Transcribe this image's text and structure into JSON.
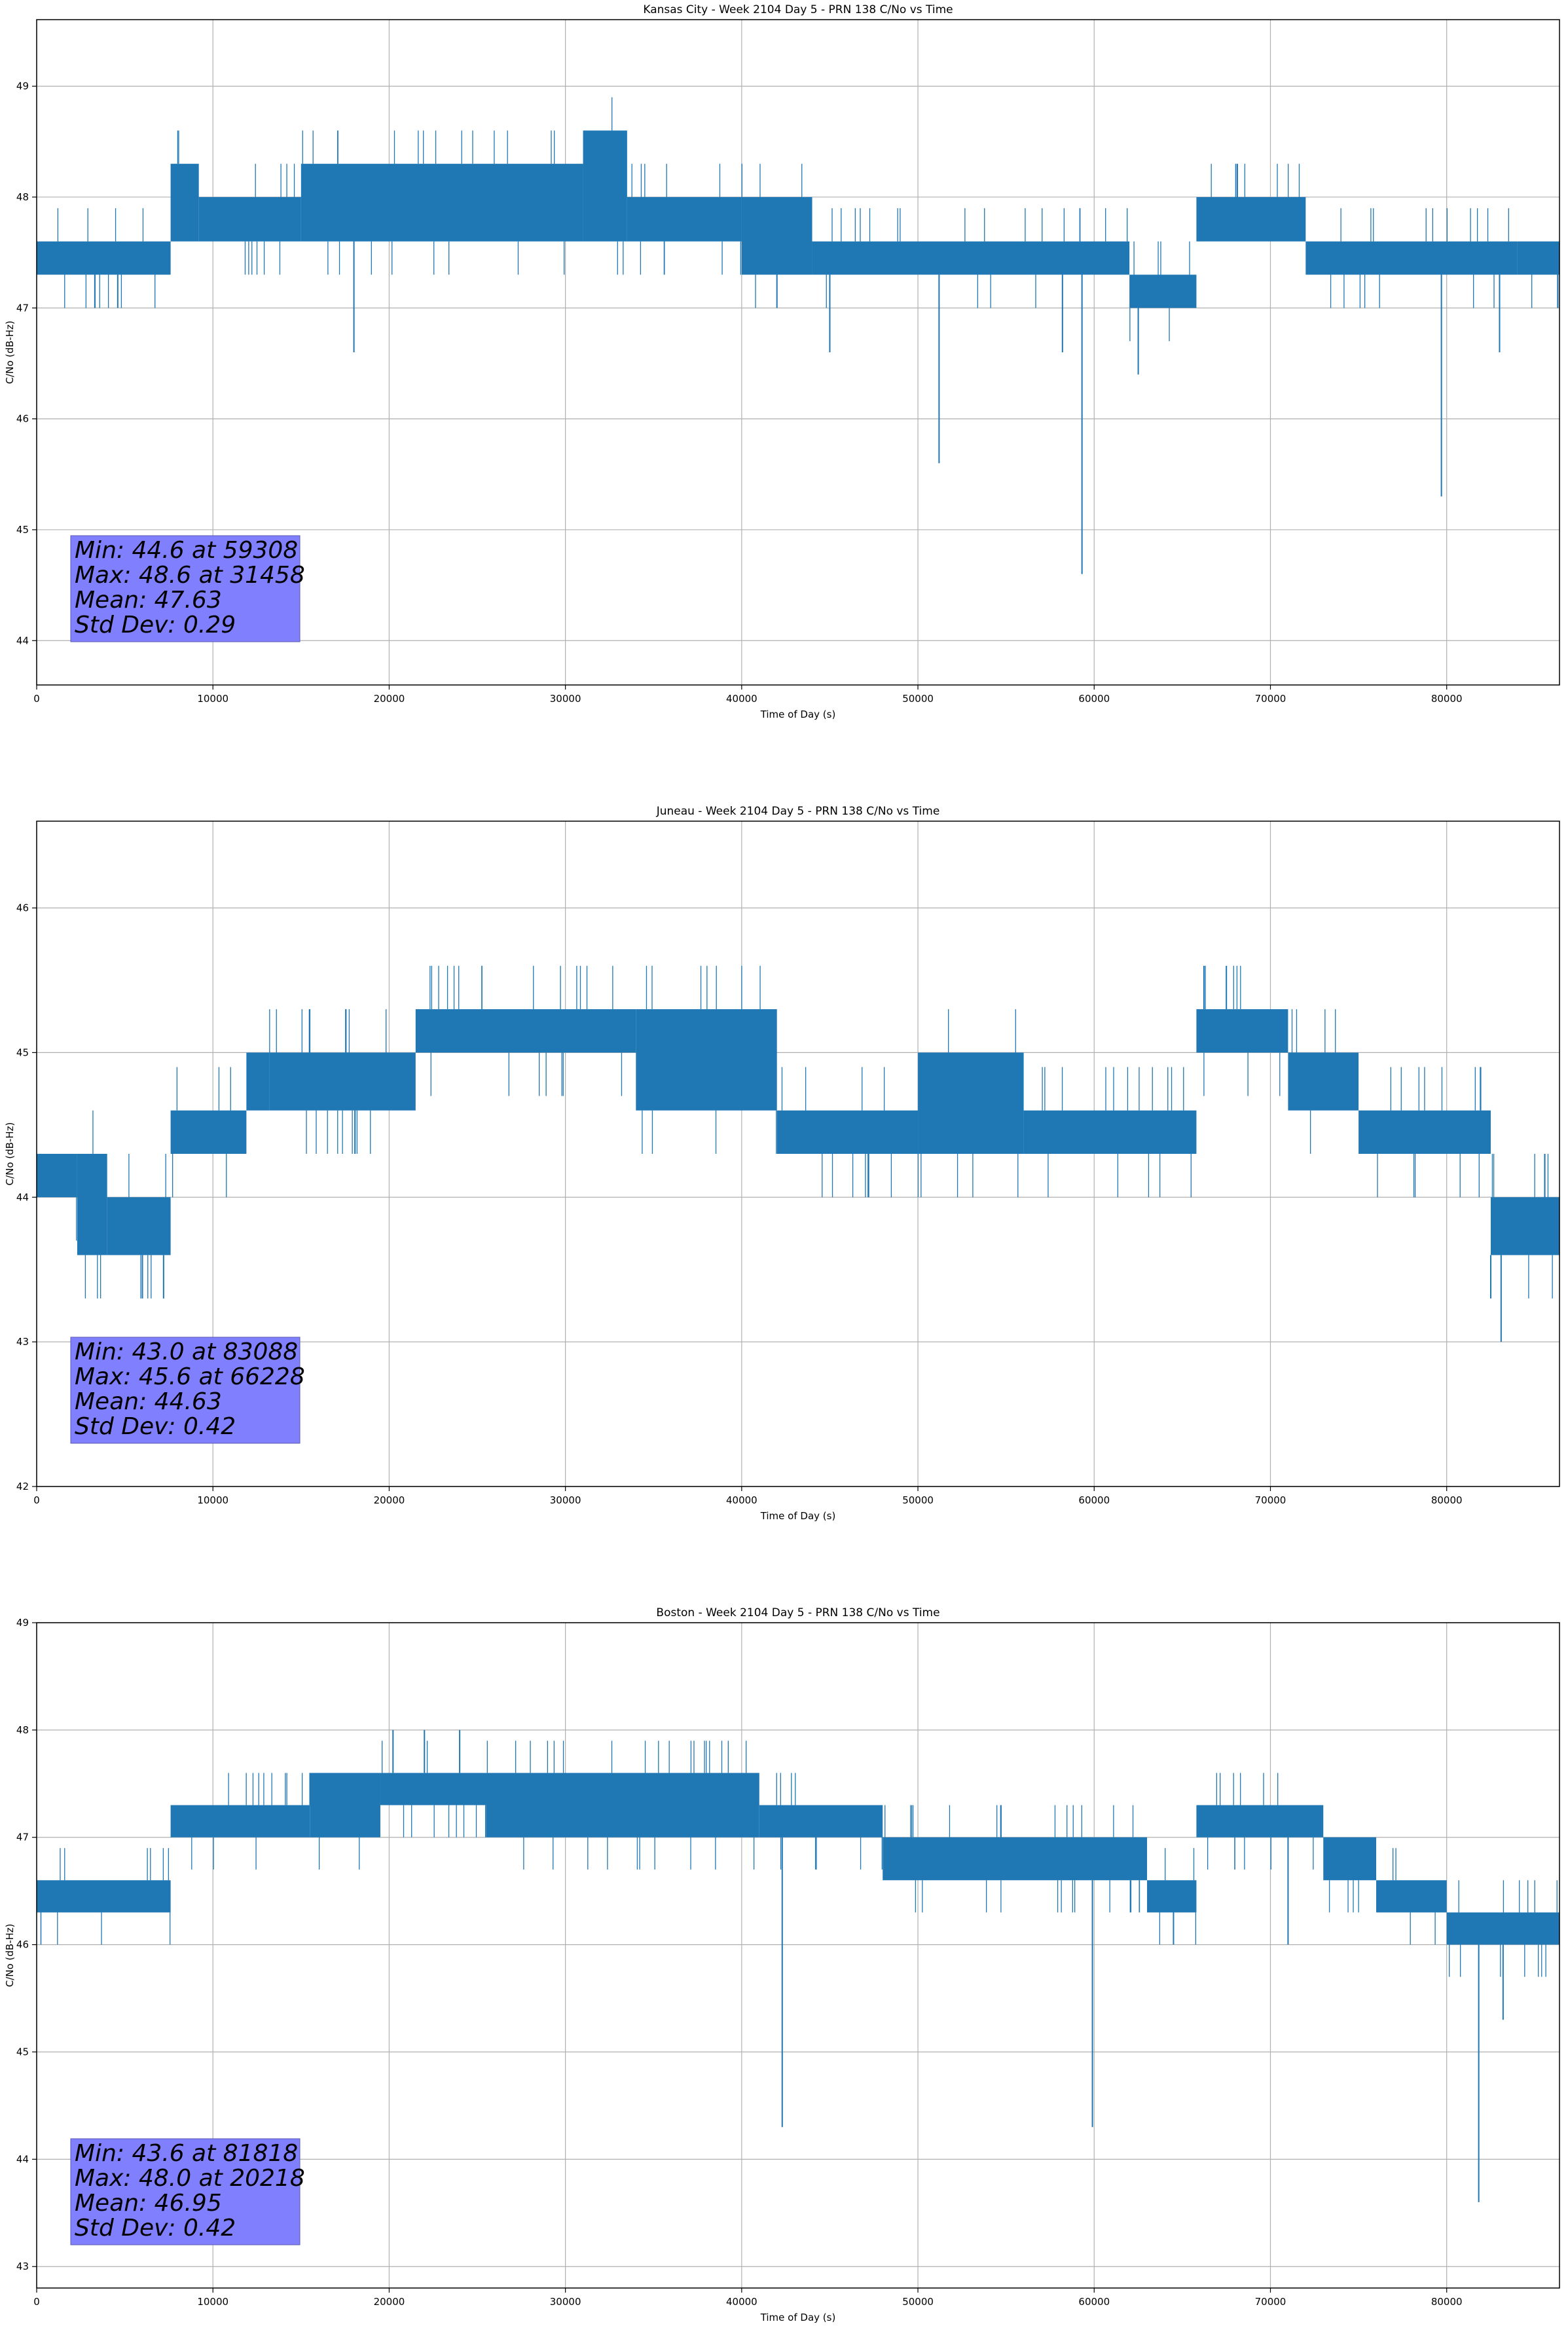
{
  "series_color": "#1f77b4",
  "box_fill": "#8080ff",
  "chart_data": [
    {
      "type": "line",
      "title": "Kansas City - Week 2104 Day 5 - PRN 138 C/No vs Time",
      "xlabel": "Time of Day (s)",
      "ylabel": "C/No (dB-Hz)",
      "xlim": [
        0,
        86400
      ],
      "ylim": [
        43.6,
        49.6
      ],
      "xticks": [
        0,
        10000,
        20000,
        30000,
        40000,
        50000,
        60000,
        70000,
        80000
      ],
      "yticks": [
        44,
        45,
        46,
        47,
        48,
        49
      ],
      "grid": true,
      "stats": [
        "Min: 44.6 at 59308",
        "Max: 48.6 at 31458",
        "Mean: 47.63",
        "Std Dev: 0.29"
      ],
      "segments": [
        {
          "x": [
            0,
            7600
          ],
          "y": [
            47.3,
            47.6
          ]
        },
        {
          "x": [
            7600,
            9200
          ],
          "y": [
            47.6,
            48.3
          ]
        },
        {
          "x": [
            9200,
            15000
          ],
          "y": [
            47.6,
            48.0
          ]
        },
        {
          "x": [
            15000,
            31000
          ],
          "y": [
            47.6,
            48.3
          ]
        },
        {
          "x": [
            31000,
            33500
          ],
          "y": [
            47.6,
            48.6
          ]
        },
        {
          "x": [
            33500,
            40000
          ],
          "y": [
            47.6,
            48.0
          ]
        },
        {
          "x": [
            40000,
            44000
          ],
          "y": [
            47.3,
            48.0
          ]
        },
        {
          "x": [
            44000,
            62000
          ],
          "y": [
            47.3,
            47.6
          ]
        },
        {
          "x": [
            62000,
            65800
          ],
          "y": [
            47.0,
            47.3
          ]
        },
        {
          "x": [
            65800,
            72000
          ],
          "y": [
            47.6,
            48.0
          ]
        },
        {
          "x": [
            72000,
            84000
          ],
          "y": [
            47.3,
            47.6
          ]
        },
        {
          "x": [
            84000,
            86400
          ],
          "y": [
            47.3,
            47.6
          ]
        }
      ],
      "spikes": [
        {
          "x": 18000,
          "y": 46.6
        },
        {
          "x": 42000,
          "y": 47.0
        },
        {
          "x": 45000,
          "y": 46.6
        },
        {
          "x": 51200,
          "y": 45.6
        },
        {
          "x": 58200,
          "y": 46.6
        },
        {
          "x": 59308,
          "y": 44.6
        },
        {
          "x": 62500,
          "y": 46.4
        },
        {
          "x": 79700,
          "y": 45.3
        },
        {
          "x": 83000,
          "y": 46.6
        },
        {
          "x": 3300,
          "y": 47.0
        },
        {
          "x": 4600,
          "y": 47.0
        },
        {
          "x": 86300,
          "y": 47.0
        }
      ]
    },
    {
      "type": "line",
      "title": "Juneau - Week 2104 Day 5 - PRN 138 C/No vs Time",
      "xlabel": "Time of Day (s)",
      "ylabel": "C/No (dB-Hz)",
      "xlim": [
        0,
        86400
      ],
      "ylim": [
        42.0,
        46.6
      ],
      "xticks": [
        0,
        10000,
        20000,
        30000,
        40000,
        50000,
        60000,
        70000,
        80000
      ],
      "yticks": [
        42,
        43,
        44,
        45,
        46
      ],
      "grid": true,
      "stats": [
        "Min: 43.0 at 83088",
        "Max: 45.6 at 66228",
        "Mean: 44.63",
        "Std Dev: 0.42"
      ],
      "segments": [
        {
          "x": [
            0,
            2300
          ],
          "y": [
            44.0,
            44.3
          ]
        },
        {
          "x": [
            2300,
            4000
          ],
          "y": [
            43.6,
            44.3
          ]
        },
        {
          "x": [
            4000,
            7600
          ],
          "y": [
            43.6,
            44.0
          ]
        },
        {
          "x": [
            7600,
            11900
          ],
          "y": [
            44.3,
            44.6
          ]
        },
        {
          "x": [
            11900,
            13200
          ],
          "y": [
            44.6,
            45.0
          ]
        },
        {
          "x": [
            13200,
            21500
          ],
          "y": [
            44.6,
            45.0
          ]
        },
        {
          "x": [
            21500,
            34000
          ],
          "y": [
            45.0,
            45.3
          ]
        },
        {
          "x": [
            34000,
            42000
          ],
          "y": [
            44.6,
            45.3
          ]
        },
        {
          "x": [
            42000,
            50000
          ],
          "y": [
            44.3,
            44.6
          ]
        },
        {
          "x": [
            50000,
            56000
          ],
          "y": [
            44.3,
            45.0
          ]
        },
        {
          "x": [
            56000,
            65800
          ],
          "y": [
            44.3,
            44.6
          ]
        },
        {
          "x": [
            65800,
            71000
          ],
          "y": [
            45.0,
            45.3
          ]
        },
        {
          "x": [
            71000,
            75000
          ],
          "y": [
            44.6,
            45.0
          ]
        },
        {
          "x": [
            75000,
            82500
          ],
          "y": [
            44.3,
            44.6
          ]
        },
        {
          "x": [
            82500,
            86400
          ],
          "y": [
            43.6,
            44.0
          ]
        }
      ],
      "spikes": [
        {
          "x": 6000,
          "y": 43.3
        },
        {
          "x": 7200,
          "y": 43.3
        },
        {
          "x": 47200,
          "y": 44.0
        },
        {
          "x": 82500,
          "y": 43.3
        },
        {
          "x": 83088,
          "y": 43.0
        },
        {
          "x": 66228,
          "y": 45.6
        },
        {
          "x": 67500,
          "y": 45.6
        }
      ]
    },
    {
      "type": "line",
      "title": "Boston - Week 2104 Day 5 - PRN 138 C/No vs Time",
      "xlabel": "Time of Day (s)",
      "ylabel": "C/No (dB-Hz)",
      "xlim": [
        0,
        86400
      ],
      "ylim": [
        42.8,
        49.0
      ],
      "xticks": [
        0,
        10000,
        20000,
        30000,
        40000,
        50000,
        60000,
        70000,
        80000
      ],
      "yticks": [
        43,
        44,
        45,
        46,
        47,
        48,
        49
      ],
      "grid": true,
      "stats": [
        "Min: 43.6 at 81818",
        "Max: 48.0 at 20218",
        "Mean: 46.95",
        "Std Dev: 0.42"
      ],
      "segments": [
        {
          "x": [
            0,
            7600
          ],
          "y": [
            46.3,
            46.6
          ]
        },
        {
          "x": [
            7600,
            15500
          ],
          "y": [
            47.0,
            47.3
          ]
        },
        {
          "x": [
            15500,
            19500
          ],
          "y": [
            47.0,
            47.6
          ]
        },
        {
          "x": [
            19500,
            25500
          ],
          "y": [
            47.3,
            47.6
          ]
        },
        {
          "x": [
            25500,
            41000
          ],
          "y": [
            47.0,
            47.6
          ]
        },
        {
          "x": [
            41000,
            48000
          ],
          "y": [
            47.0,
            47.3
          ]
        },
        {
          "x": [
            48000,
            63000
          ],
          "y": [
            46.6,
            47.0
          ]
        },
        {
          "x": [
            63000,
            65800
          ],
          "y": [
            46.3,
            46.6
          ]
        },
        {
          "x": [
            65800,
            73000
          ],
          "y": [
            47.0,
            47.3
          ]
        },
        {
          "x": [
            73000,
            76000
          ],
          "y": [
            46.6,
            47.0
          ]
        },
        {
          "x": [
            76000,
            80000
          ],
          "y": [
            46.3,
            46.6
          ]
        },
        {
          "x": [
            80000,
            86400
          ],
          "y": [
            46.0,
            46.3
          ]
        }
      ],
      "spikes": [
        {
          "x": 20218,
          "y": 48.0
        },
        {
          "x": 22000,
          "y": 48.0
        },
        {
          "x": 24000,
          "y": 48.0
        },
        {
          "x": 42300,
          "y": 44.3
        },
        {
          "x": 59900,
          "y": 44.3
        },
        {
          "x": 81818,
          "y": 43.6
        },
        {
          "x": 83200,
          "y": 45.3
        },
        {
          "x": 64500,
          "y": 46.0
        },
        {
          "x": 71000,
          "y": 46.0
        }
      ]
    }
  ]
}
